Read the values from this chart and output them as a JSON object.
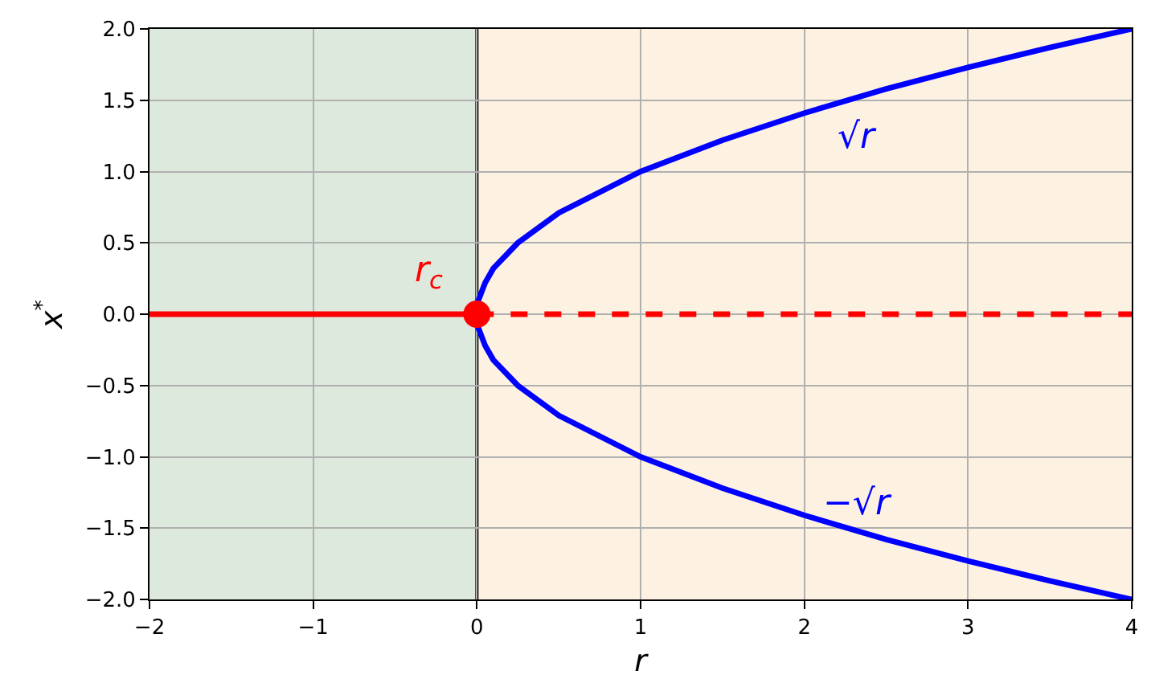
{
  "chart_data": {
    "type": "line",
    "xlabel": "r",
    "ylabel": "x$^{*}$",
    "xlim": [
      -2,
      4
    ],
    "xticks": [
      {
        "value": -2,
        "label": "−2"
      },
      {
        "value": -1,
        "label": "−1"
      },
      0,
      1,
      2,
      3,
      4
    ],
    "ylim": [
      -2,
      2
    ],
    "yticks": [
      {
        "value": -2,
        "label": "−2.0"
      },
      {
        "value": -1.5,
        "label": "−1.5"
      },
      {
        "value": -1,
        "label": "−1.0"
      },
      {
        "value": -0.5,
        "label": "−0.5"
      },
      {
        "value": 0,
        "label": "0.0"
      },
      {
        "value": 0.5,
        "label": "0.5"
      },
      {
        "value": 1,
        "label": "1.0"
      },
      {
        "value": 1.5,
        "label": "1.5"
      },
      {
        "value": 2,
        "label": "2.0"
      }
    ],
    "grid": true,
    "bands": [
      {
        "axis": "x",
        "from": -2,
        "to": 0,
        "color": "#dde9dc"
      },
      {
        "axis": "x",
        "from": 0,
        "to": 4,
        "color": "#fdf2e2"
      }
    ],
    "ref_lines": [
      {
        "axis": "x",
        "value": 0,
        "color": "#000000"
      }
    ],
    "series": [
      {
        "color": "#ff0000",
        "line_style": "solid",
        "x": [
          -2,
          0
        ],
        "values": [
          0,
          0
        ]
      },
      {
        "color": "#ff0000",
        "line_style": "dashed",
        "x": [
          0,
          4
        ],
        "values": [
          0,
          0
        ]
      },
      {
        "name": "√r",
        "color": "#0000ff",
        "line_style": "solid",
        "x": [
          0,
          0.01,
          0.05,
          0.1,
          0.25,
          0.5,
          1,
          1.5,
          2,
          2.5,
          3,
          3.5,
          4
        ],
        "values": [
          0,
          0.1,
          0.22,
          0.32,
          0.5,
          0.71,
          1,
          1.22,
          1.41,
          1.58,
          1.73,
          1.87,
          2
        ]
      },
      {
        "name": "−√r",
        "color": "#0000ff",
        "line_style": "solid",
        "x": [
          0,
          0.01,
          0.05,
          0.1,
          0.25,
          0.5,
          1,
          1.5,
          2,
          2.5,
          3,
          3.5,
          4
        ],
        "values": [
          0,
          -0.1,
          -0.22,
          -0.32,
          -0.5,
          -0.71,
          -1,
          -1.22,
          -1.41,
          -1.58,
          -1.73,
          -1.87,
          -2
        ]
      },
      {
        "name": "r$_{c}$",
        "type": "scatter",
        "marker": "circle",
        "color": "#ff0000",
        "x": [
          0
        ],
        "values": [
          0
        ]
      }
    ]
  }
}
